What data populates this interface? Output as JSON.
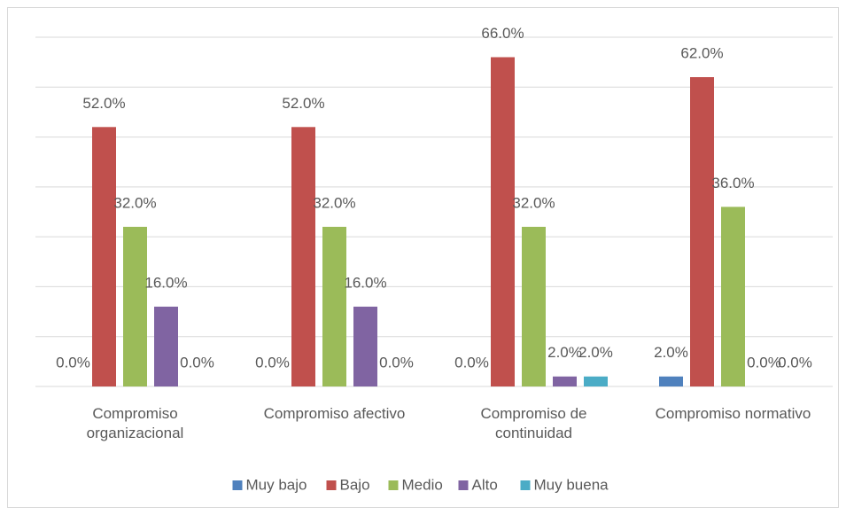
{
  "chart_data": {
    "type": "bar",
    "categories": [
      "Compromiso organizacional",
      "Compromiso afectivo",
      "Compromiso de continuidad",
      "Compromiso normativo"
    ],
    "series": [
      {
        "name": "Muy bajo",
        "color": "#4f81bd",
        "values": [
          0,
          0,
          0,
          2
        ],
        "value_labels": [
          "0.0%",
          "0.0%",
          "0.0%",
          "2.0%"
        ]
      },
      {
        "name": "Bajo",
        "color": "#c0504d",
        "values": [
          52,
          52,
          66,
          62
        ],
        "value_labels": [
          "52.0%",
          "52.0%",
          "66.0%",
          "62.0%"
        ]
      },
      {
        "name": "Medio",
        "color": "#9bbb59",
        "values": [
          32,
          32,
          32,
          36
        ],
        "value_labels": [
          "32.0%",
          "32.0%",
          "32.0%",
          "36.0%"
        ]
      },
      {
        "name": "Alto",
        "color": "#8064a2",
        "values": [
          16,
          16,
          2,
          0
        ],
        "value_labels": [
          "16.0%",
          "16.0%",
          "2.0%",
          "0.0%"
        ]
      },
      {
        "name": "Muy buena",
        "color": "#4bacc6",
        "values": [
          0,
          0,
          2,
          0
        ],
        "value_labels": [
          "0.0%",
          "0.0%",
          "2.0%",
          "0.0%"
        ]
      }
    ],
    "ylim": [
      0,
      70
    ],
    "yticks": [
      0,
      10,
      20,
      30,
      40,
      50,
      60,
      70
    ],
    "grid": true,
    "ytick_labels": false,
    "legend": "bottom"
  }
}
